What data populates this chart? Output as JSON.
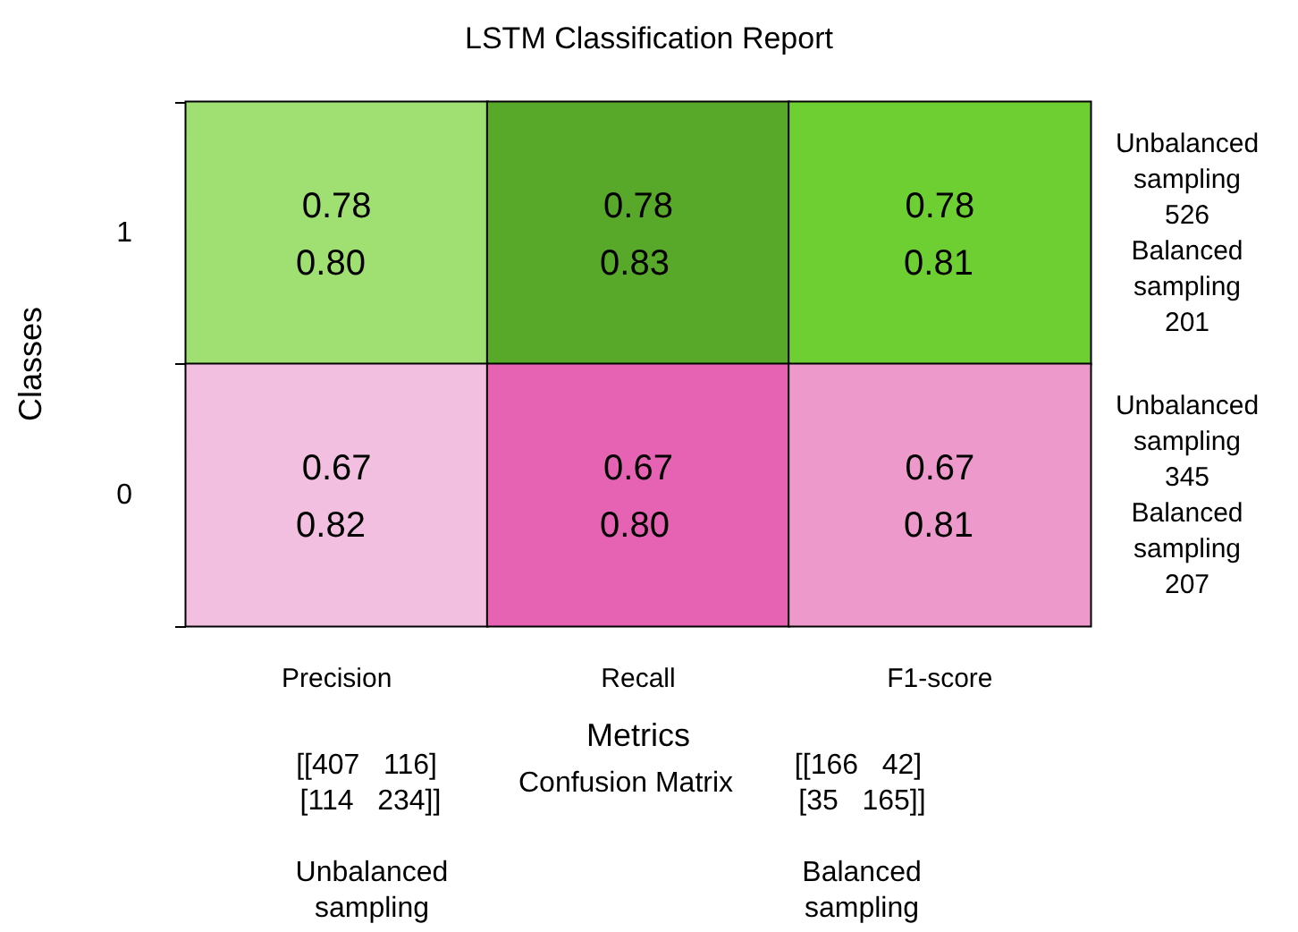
{
  "chart_data": {
    "type": "heatmap",
    "title": "LSTM Classification Report",
    "xlabel": "Metrics",
    "ylabel": "Classes",
    "categories": [
      "Precision",
      "Recall",
      "F1-score"
    ],
    "y_categories": [
      "1",
      "0"
    ],
    "y2_categories": [
      "Unbalanced\nsampling\n526\nBalanced\nsampling\n201",
      "Unbalanced\nsampling\n345\nBalanced\nsampling\n207"
    ],
    "cells": [
      [
        0.78,
        0.78,
        0.78
      ],
      [
        0.67,
        0.67,
        0.67
      ]
    ],
    "colors": [
      [
        "#a0e073",
        "#58a82a",
        "#6ecf33"
      ],
      [
        "#f2bfe0",
        "#e563b2",
        "#ed99cb"
      ]
    ],
    "data_labels": true,
    "annotations": [
      "0.80",
      "0.83",
      "0.81",
      "0.82",
      "0.80",
      "0.81",
      "[[407   116]\n [114   234]]",
      "Confusion Matrix",
      "[[166   42]\n [35   165]]",
      "Unbalanced\nsampling",
      "Balanced\nsampling"
    ]
  }
}
